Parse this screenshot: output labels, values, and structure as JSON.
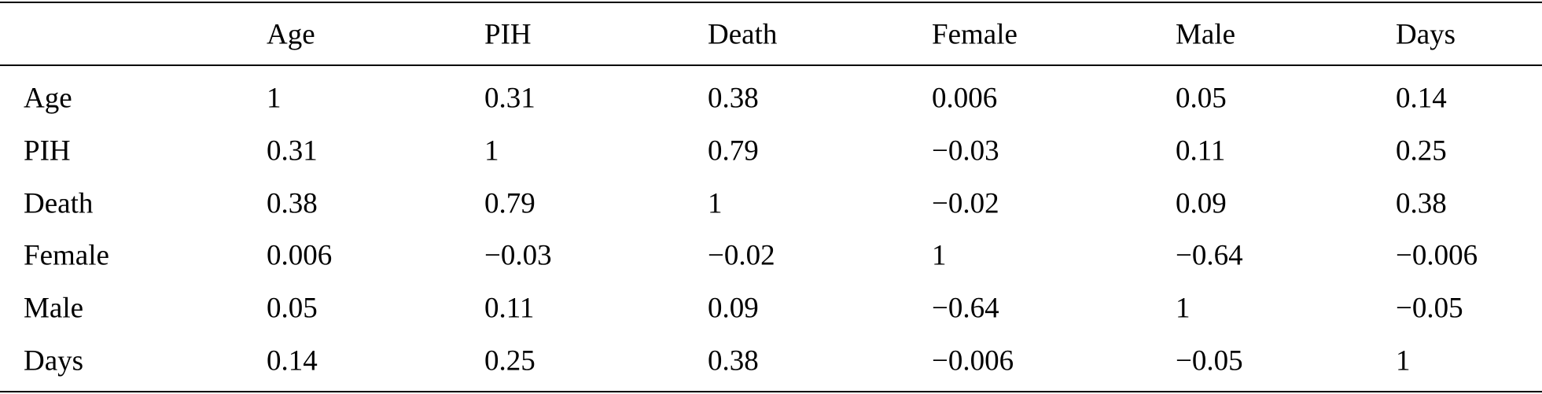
{
  "table": {
    "columns": [
      "Age",
      "PIH",
      "Death",
      "Female",
      "Male",
      "Days"
    ],
    "rows": [
      {
        "label": "Age",
        "values": [
          "1",
          "0.31",
          "0.38",
          "0.006",
          "0.05",
          "0.14"
        ]
      },
      {
        "label": "PIH",
        "values": [
          "0.31",
          "1",
          "0.79",
          "−0.03",
          "0.11",
          "0.25"
        ]
      },
      {
        "label": "Death",
        "values": [
          "0.38",
          "0.79",
          "1",
          "−0.02",
          "0.09",
          "0.38"
        ]
      },
      {
        "label": "Female",
        "values": [
          "0.006",
          "−0.03",
          "−0.02",
          "1",
          "−0.64",
          "−0.006"
        ]
      },
      {
        "label": "Male",
        "values": [
          "0.05",
          "0.11",
          "0.09",
          "−0.64",
          "1",
          "−0.05"
        ]
      },
      {
        "label": "Days",
        "values": [
          "0.14",
          "0.25",
          "0.38",
          "−0.006",
          "−0.05",
          "1"
        ]
      }
    ]
  }
}
